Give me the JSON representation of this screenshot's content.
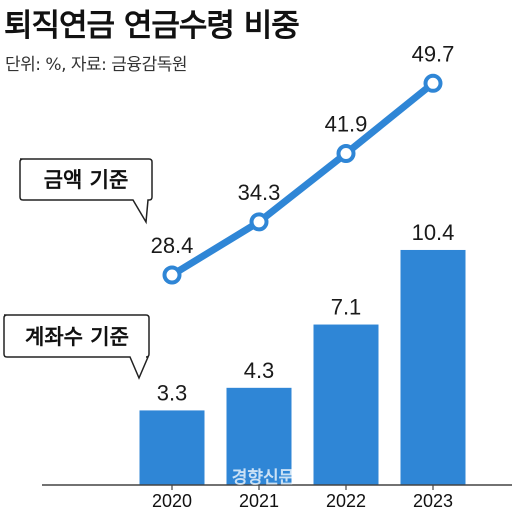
{
  "title": "퇴직연금 연금수령 비중",
  "subtitle": "단위: %, 자료: 금융감독원",
  "watermark": "경향신문",
  "colors": {
    "bar": "#2f86d6",
    "line": "#2f86d6",
    "marker_fill": "#ffffff"
  },
  "chart_data": {
    "type": "bar",
    "categories": [
      "2020",
      "2021",
      "2022",
      "2023"
    ],
    "series": [
      {
        "name": "계좌수 기준",
        "type": "bar",
        "values": [
          3.3,
          4.3,
          7.1,
          10.4
        ]
      },
      {
        "name": "금액 기준",
        "type": "line",
        "values": [
          28.4,
          34.3,
          41.9,
          49.7
        ]
      }
    ],
    "annotations": [
      "금액 기준",
      "계좌수 기준"
    ],
    "title": "퇴직연금 연금수령 비중",
    "xlabel": "",
    "ylabel": "",
    "grid": false,
    "legend": "callout-labels"
  }
}
